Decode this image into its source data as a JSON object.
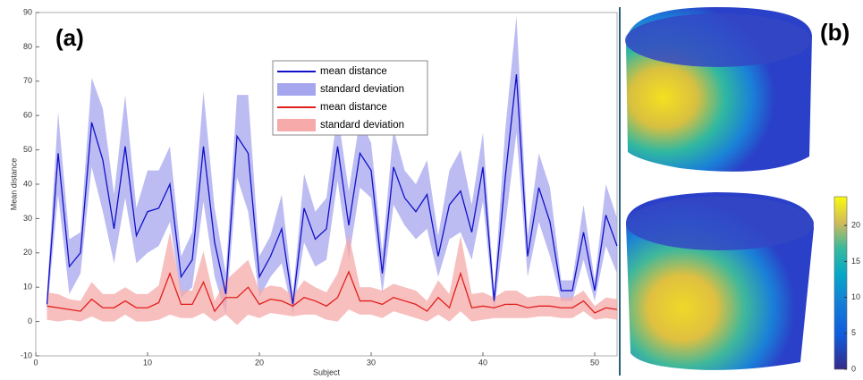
{
  "chart_data": [
    {
      "type": "line",
      "panel_label": "(a)",
      "xlabel": "Subject",
      "ylabel": "Mean distance",
      "xlim": [
        0,
        52
      ],
      "ylim": [
        -10,
        90
      ],
      "xticks": [
        0,
        10,
        20,
        30,
        40,
        50
      ],
      "yticks": [
        -10,
        0,
        10,
        20,
        30,
        40,
        50,
        60,
        70,
        80,
        90
      ],
      "x": [
        1,
        2,
        3,
        4,
        5,
        6,
        7,
        8,
        9,
        10,
        11,
        12,
        13,
        14,
        15,
        16,
        17,
        18,
        19,
        20,
        21,
        22,
        23,
        24,
        25,
        26,
        27,
        28,
        29,
        30,
        31,
        32,
        33,
        34,
        35,
        36,
        37,
        38,
        39,
        40,
        41,
        42,
        43,
        44,
        45,
        46,
        47,
        48,
        49,
        50,
        51,
        52
      ],
      "series": [
        {
          "name": "mean distance",
          "color": "#1010c8",
          "band_name": "standard deviation",
          "band_color": "#a6a6ef",
          "values": [
            5,
            49,
            16,
            20,
            58,
            47,
            27,
            51,
            25,
            32,
            33,
            40,
            13,
            18,
            51,
            23,
            8,
            54,
            49,
            13,
            19,
            27,
            5,
            33,
            24,
            27,
            51,
            28,
            49,
            44,
            14,
            45,
            36,
            32,
            37,
            19,
            34,
            38,
            26,
            45,
            6,
            42,
            72,
            19,
            39,
            29,
            9,
            9,
            26,
            9,
            31,
            22
          ],
          "std": [
            3,
            12,
            8,
            6,
            13,
            15,
            10,
            15,
            8,
            12,
            11,
            11,
            6,
            8,
            16,
            10,
            6,
            12,
            17,
            6,
            6,
            10,
            3,
            10,
            8,
            9,
            10,
            10,
            10,
            8,
            6,
            11,
            8,
            8,
            10,
            6,
            10,
            12,
            8,
            10,
            3,
            14,
            17,
            6,
            10,
            10,
            3,
            3,
            8,
            3,
            9,
            8
          ]
        },
        {
          "name": "mean distance",
          "color": "#e0201c",
          "band_name": "standard deviation",
          "band_color": "#f6aaaa",
          "values": [
            4.5,
            4,
            3.5,
            3,
            6.5,
            4,
            4,
            6,
            4,
            4,
            5.5,
            14,
            5,
            5,
            11.5,
            3,
            7,
            7,
            10,
            5,
            6.5,
            6,
            4.5,
            7,
            6,
            4.5,
            7,
            14.5,
            6,
            6,
            5,
            7,
            6,
            5,
            3,
            7,
            4,
            14,
            4,
            4.5,
            4,
            5,
            5,
            4,
            4.5,
            4.5,
            4,
            4,
            6,
            2.5,
            4,
            3.5
          ],
          "std": [
            4,
            4,
            3,
            3,
            5,
            4,
            4,
            4,
            4,
            4,
            5,
            12,
            4,
            4,
            9,
            3,
            5,
            8,
            8,
            4,
            4,
            4,
            3,
            5,
            4,
            4,
            7,
            11,
            4,
            4,
            4,
            4,
            4,
            4,
            3,
            5,
            4,
            11,
            4,
            4,
            3,
            4,
            4,
            3,
            3,
            3,
            3,
            3,
            3,
            2,
            3,
            3
          ]
        }
      ]
    },
    {
      "type": "colorbar",
      "panel_label": "(b)",
      "ylim": [
        0,
        24
      ],
      "yticks": [
        0,
        5,
        10,
        15,
        20
      ]
    }
  ]
}
